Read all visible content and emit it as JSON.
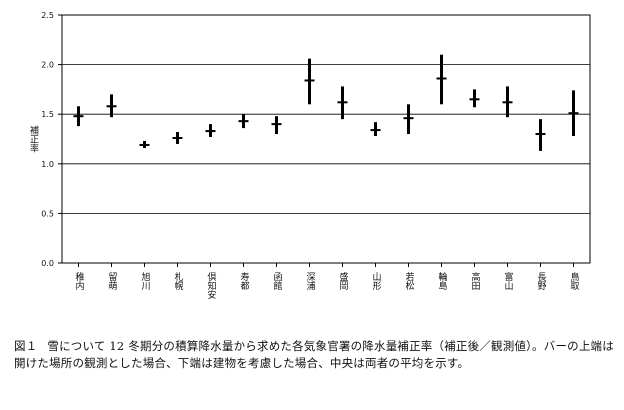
{
  "chart_data": {
    "type": "range",
    "ylabel": "補正率",
    "ylim": [
      0,
      2.5
    ],
    "yticks": [
      "0.0",
      "0.5",
      "1.0",
      "1.5",
      "2.0",
      "2.5"
    ],
    "grid": "horizontal",
    "categories": [
      "稚内",
      "留萌",
      "旭川",
      "札幌",
      "倶知安",
      "寿都",
      "函館",
      "深浦",
      "盛岡",
      "山形",
      "若松",
      "輪島",
      "高田",
      "富山",
      "長野",
      "鳥取"
    ],
    "low": [
      1.38,
      1.47,
      1.16,
      1.2,
      1.27,
      1.36,
      1.3,
      1.6,
      1.45,
      1.28,
      1.3,
      1.6,
      1.57,
      1.47,
      1.13,
      1.28
    ],
    "high": [
      1.58,
      1.7,
      1.23,
      1.32,
      1.4,
      1.5,
      1.48,
      2.06,
      1.78,
      1.42,
      1.6,
      2.1,
      1.75,
      1.78,
      1.45,
      1.74
    ],
    "mean": [
      1.48,
      1.58,
      1.19,
      1.26,
      1.33,
      1.43,
      1.4,
      1.84,
      1.62,
      1.34,
      1.46,
      1.86,
      1.65,
      1.62,
      1.3,
      1.51
    ]
  },
  "caption": {
    "label": "図１",
    "text": "雪について 12 冬期分の積算降水量から求めた各気象官署の降水量補正率（補正後／観測値）。バーの上端は開けた場所の観測とした場合、下端は建物を考慮した場合、中央は両者の平均を示す。"
  }
}
